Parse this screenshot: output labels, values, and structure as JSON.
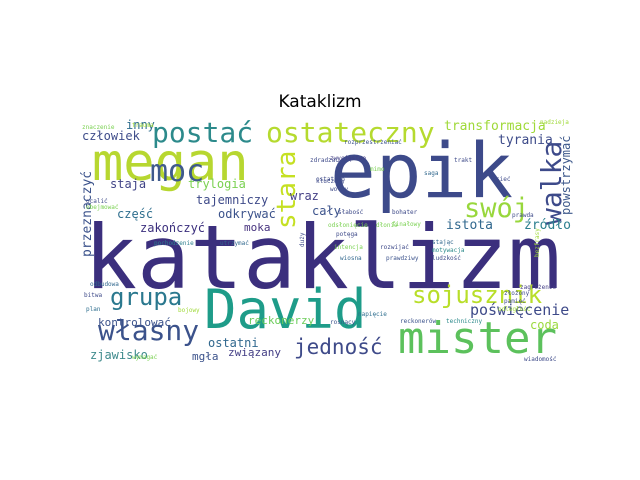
{
  "title": "Kataklizm",
  "words": [
    {
      "text": "kataklizm",
      "color": "#3b2f7d"
    },
    {
      "text": "epik",
      "color": "#3d4a8a"
    },
    {
      "text": "megan",
      "color": "#b7d730"
    },
    {
      "text": "David",
      "color": "#1e9c89"
    },
    {
      "text": "mister",
      "color": "#5cc15c"
    },
    {
      "text": "ostateczny",
      "color": "#b5da2f"
    },
    {
      "text": "postać",
      "color": "#2c8a8b"
    },
    {
      "text": "moc",
      "color": "#3f5a8c"
    },
    {
      "text": "walka",
      "color": "#3d4a8a"
    },
    {
      "text": "swój",
      "color": "#98d73c"
    },
    {
      "text": "stara",
      "color": "#c5e022"
    },
    {
      "text": "grupa",
      "color": "#2a788e"
    },
    {
      "text": "sojusznik",
      "color": "#b8de29"
    },
    {
      "text": "własny",
      "color": "#3b528b"
    },
    {
      "text": "jedność",
      "color": "#3e4a89"
    },
    {
      "text": "transformacja",
      "color": "#9fd938"
    },
    {
      "text": "tyrania",
      "color": "#3e4c8a"
    },
    {
      "text": "powstrzymać",
      "color": "#3f5a8c"
    },
    {
      "text": "źródło",
      "color": "#2c7f8e"
    },
    {
      "text": "istota",
      "color": "#31688e"
    },
    {
      "text": "poświęcenie",
      "color": "#3e4a89"
    },
    {
      "text": "coda",
      "color": "#9ad93c"
    },
    {
      "text": "przeznaczyć",
      "color": "#3b528b"
    },
    {
      "text": "inny",
      "color": "#2e6e8e"
    },
    {
      "text": "człowiek",
      "color": "#3e4c8a"
    },
    {
      "text": "staja",
      "color": "#414487"
    },
    {
      "text": "część",
      "color": "#2e6e8e"
    },
    {
      "text": "zakończyć",
      "color": "#3b2f7d"
    },
    {
      "text": "trylogia",
      "color": "#7ad151"
    },
    {
      "text": "tajemniczy",
      "color": "#3e4a89"
    },
    {
      "text": "odkrywać",
      "color": "#3b528b"
    },
    {
      "text": "wraz",
      "color": "#433e85"
    },
    {
      "text": "cały",
      "color": "#3b528b"
    },
    {
      "text": "moka",
      "color": "#46327e"
    },
    {
      "text": "reckonerzy",
      "color": "#6ccd5a"
    },
    {
      "text": "kontrolować",
      "color": "#3b528b"
    },
    {
      "text": "zjawisko",
      "color": "#3e8a8c"
    },
    {
      "text": "ostatni",
      "color": "#31688e"
    },
    {
      "text": "związany",
      "color": "#433e85"
    },
    {
      "text": "mgła",
      "color": "#3b528b"
    },
    {
      "text": "odległość",
      "color": "#9fd938"
    },
    {
      "text": "napięcie",
      "color": "#2e6e8e"
    },
    {
      "text": "rosnący",
      "color": "#3b528b"
    },
    {
      "text": "pochodzenie",
      "color": "#2c7f8e"
    },
    {
      "text": "utrzymać",
      "color": "#31688e"
    },
    {
      "text": "bojowy",
      "color": "#9fd938"
    },
    {
      "text": "odbudowa",
      "color": "#31688e"
    },
    {
      "text": "bitwa",
      "color": "#3e4a89"
    },
    {
      "text": "plan",
      "color": "#2e6e8e"
    },
    {
      "text": "trauma",
      "color": "#9fd938"
    },
    {
      "text": "wymagać",
      "color": "#7ad151"
    },
    {
      "text": "bezfrasy",
      "color": "#9fd938"
    },
    {
      "text": "zwycięstwo",
      "color": "#433e85"
    },
    {
      "text": "rozprzestrzeniać",
      "color": "#3b528b"
    },
    {
      "text": "nadzieja",
      "color": "#9fd938"
    },
    {
      "text": "zagrożenie",
      "color": "#433e85"
    },
    {
      "text": "ocalić",
      "color": "#3e4a89"
    },
    {
      "text": "obejmować",
      "color": "#7ad151"
    },
    {
      "text": "saga",
      "color": "#31688e"
    },
    {
      "text": "trakt",
      "color": "#3e4a89"
    },
    {
      "text": "słabość",
      "color": "#3e4a89"
    },
    {
      "text": "bohater",
      "color": "#3e4a89"
    },
    {
      "text": "finałowy",
      "color": "#7ad151"
    },
    {
      "text": "motywacja",
      "color": "#2c8a8b"
    },
    {
      "text": "stając",
      "color": "#31688e"
    },
    {
      "text": "ludzkość",
      "color": "#3e4a89"
    },
    {
      "text": "reckonerów",
      "color": "#3b528b"
    },
    {
      "text": "techniczny",
      "color": "#2c8a8b"
    },
    {
      "text": "złożony",
      "color": "#3e4a89"
    },
    {
      "text": "pamięć",
      "color": "#3e4a89"
    },
    {
      "text": "sieć",
      "color": "#3e4a89"
    },
    {
      "text": "prawda",
      "color": "#3e4a89"
    },
    {
      "text": "potęga",
      "color": "#3e4a89"
    },
    {
      "text": "intencja",
      "color": "#7ad151"
    },
    {
      "text": "rozwijać",
      "color": "#3e4a89"
    },
    {
      "text": "wiosna",
      "color": "#31688e"
    },
    {
      "text": "prawdziwy",
      "color": "#3b528b"
    },
    {
      "text": "dłonie",
      "color": "#7ad151"
    },
    {
      "text": "odsłonięcie",
      "color": "#7ad151"
    },
    {
      "text": "mimo",
      "color": "#7ad151"
    },
    {
      "text": "duży",
      "color": "#3e4a89"
    },
    {
      "text": "zdradzać",
      "color": "#3e4a89"
    },
    {
      "text": "znaczenie",
      "color": "#7ad151"
    },
    {
      "text": "ostatnio",
      "color": "#3e4a89"
    },
    {
      "text": "kluczowy",
      "color": "#3e4a89"
    },
    {
      "text": "wolny",
      "color": "#3e4a89"
    },
    {
      "text": "wiadomość",
      "color": "#3e4a89"
    }
  ]
}
